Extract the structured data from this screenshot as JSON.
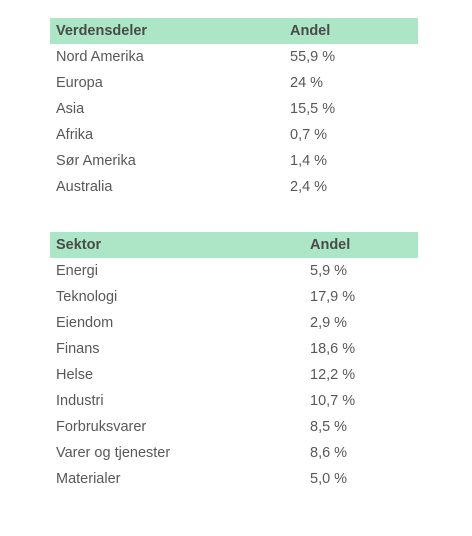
{
  "regions_table": {
    "headers": [
      "Verdensdeler",
      "Andel"
    ],
    "rows": [
      {
        "name": "Nord Amerika",
        "share": "55,9 %"
      },
      {
        "name": "Europa",
        "share": "24 %"
      },
      {
        "name": "Asia",
        "share": "15,5 %"
      },
      {
        "name": "Afrika",
        "share": "0,7 %"
      },
      {
        "name": "Sør Amerika",
        "share": "1,4 %"
      },
      {
        "name": "Australia",
        "share": "2,4 %"
      }
    ]
  },
  "sectors_table": {
    "headers": [
      "Sektor",
      "Andel"
    ],
    "rows": [
      {
        "name": "Energi",
        "share": "5,9 %"
      },
      {
        "name": "Teknologi",
        "share": "17,9 %"
      },
      {
        "name": "Eiendom",
        "share": "2,9 %"
      },
      {
        "name": "Finans",
        "share": "18,6 %"
      },
      {
        "name": "Helse",
        "share": "12,2 %"
      },
      {
        "name": "Industri",
        "share": "10,7 %"
      },
      {
        "name": "Forbruksvarer",
        "share": "8,5 %"
      },
      {
        "name": "Varer og tjenester",
        "share": "8,6 %"
      },
      {
        "name": "Materialer",
        "share": "5,0 %"
      }
    ]
  },
  "colors": {
    "header_background": "#ace6c6",
    "text": "#585858"
  }
}
